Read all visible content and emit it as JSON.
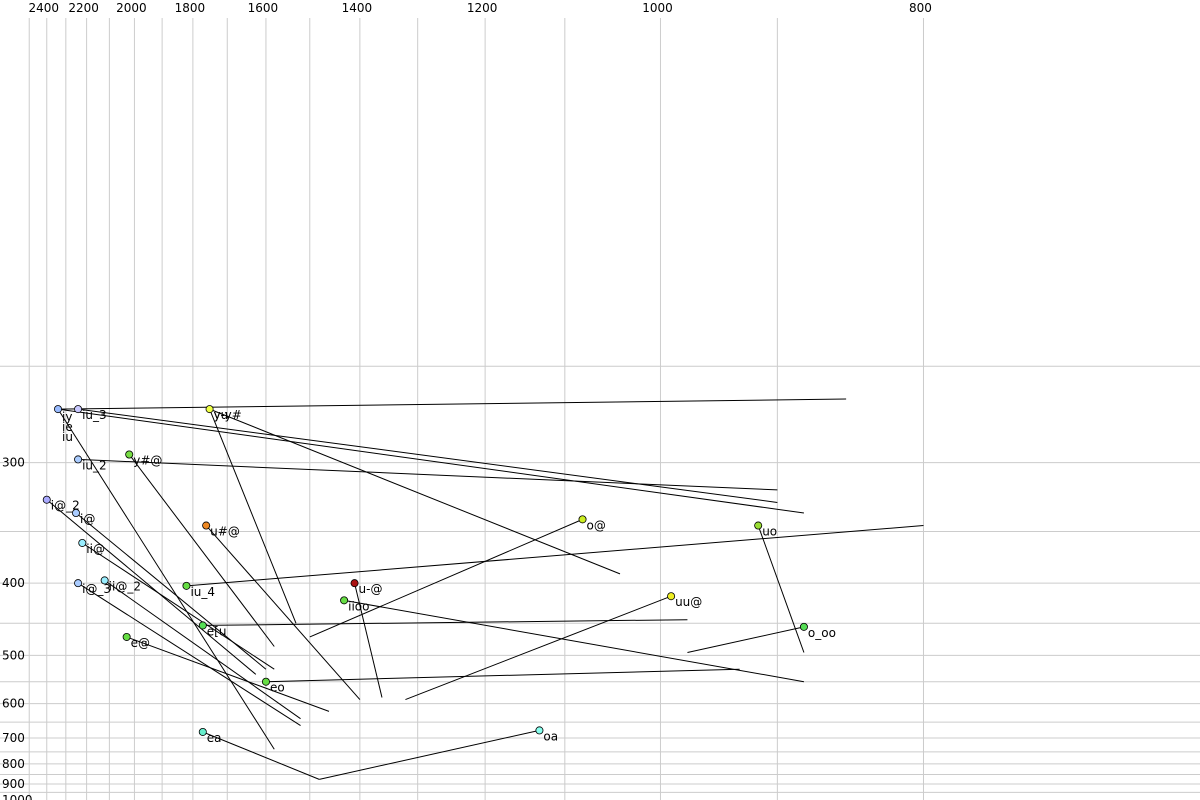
{
  "chart_data": {
    "type": "scatter",
    "title": "",
    "xlabel": "",
    "ylabel": "",
    "x_axis": {
      "reversed": true,
      "scale": "reciprocal",
      "range": [
        2500,
        760
      ],
      "ticks": [
        2400,
        2200,
        2000,
        1800,
        1600,
        1400,
        1200,
        1000,
        800
      ],
      "position": "top"
    },
    "y_axis": {
      "reversed": true,
      "scale": "reciprocal",
      "range": [
        200,
        1000
      ],
      "ticks": [
        300,
        400,
        500,
        600,
        700,
        800,
        900,
        1000
      ],
      "position": "left"
    },
    "grid": true,
    "points": [
      {
        "label": "iy",
        "x": 2340,
        "y": 270,
        "end_x": 850,
        "end_y": 265,
        "color": "#99bbff"
      },
      {
        "label": "ie",
        "x": 2340,
        "y": 270,
        "end_x": 1580,
        "end_y": 740,
        "color": "#99bbff"
      },
      {
        "label": "iu",
        "x": 2340,
        "y": 270,
        "end_x": 880,
        "end_y": 335,
        "color": "#99bbff"
      },
      {
        "label": "iu_3",
        "x": 2240,
        "y": 270,
        "end_x": 900,
        "end_y": 327,
        "color": "#c8c8ff"
      },
      {
        "label": "iu_2",
        "x": 2240,
        "y": 298,
        "end_x": 900,
        "end_y": 318,
        "color": "#aaccff"
      },
      {
        "label": "i@_2",
        "x": 2400,
        "y": 325,
        "end_x": 1625,
        "end_y": 535,
        "color": "#aaaaff"
      },
      {
        "label": "i@",
        "x": 2250,
        "y": 335,
        "end_x": 1600,
        "end_y": 525,
        "color": "#aaccff"
      },
      {
        "label": "ii@",
        "x": 2220,
        "y": 360,
        "end_x": 1580,
        "end_y": 525,
        "color": "#99eeff"
      },
      {
        "label": "ii@_2",
        "x": 2120,
        "y": 397,
        "end_x": 1520,
        "end_y": 640,
        "color": "#99eeff"
      },
      {
        "label": "i@_3",
        "x": 2240,
        "y": 400,
        "end_x": 1520,
        "end_y": 660,
        "color": "#aaccff"
      },
      {
        "label": "y-y#",
        "x": 1750,
        "y": 270,
        "end_x": 1040,
        "end_y": 390,
        "color": "#eeff44"
      },
      {
        "label": "yu",
        "x": 1750,
        "y": 270,
        "end_x": 1530,
        "end_y": 450,
        "color": "#eeff44"
      },
      {
        "label": "y#@",
        "x": 2020,
        "y": 295,
        "end_x": 1580,
        "end_y": 485,
        "color": "#77dd44"
      },
      {
        "label": "u#@",
        "x": 1760,
        "y": 345,
        "end_x": 1400,
        "end_y": 590,
        "color": "#ee8822"
      },
      {
        "label": "iu_4",
        "x": 1820,
        "y": 403,
        "end_x": 800,
        "end_y": 345,
        "color": "#66dd44"
      },
      {
        "label": "u-@",
        "x": 1410,
        "y": 400,
        "end_x": 1360,
        "end_y": 585,
        "color": "#aa1111"
      },
      {
        "label": "iioo",
        "x": 1430,
        "y": 420,
        "end_x": 880,
        "end_y": 550,
        "color": "#66dd44"
      },
      {
        "label": "e[u",
        "x": 1770,
        "y": 453,
        "end_x": 975,
        "end_y": 445,
        "color": "#55dd55"
      },
      {
        "label": "e@",
        "x": 2030,
        "y": 470,
        "end_x": 1460,
        "end_y": 620,
        "color": "#66dd44"
      },
      {
        "label": "eo",
        "x": 1600,
        "y": 550,
        "end_x": 930,
        "end_y": 525,
        "color": "#66dd44"
      },
      {
        "label": "o@",
        "x": 1080,
        "y": 340,
        "end_x": 1500,
        "end_y": 470,
        "color": "#ccee22"
      },
      {
        "label": "uo",
        "x": 915,
        "y": 345,
        "end_x": 880,
        "end_y": 495,
        "color": "#99dd33"
      },
      {
        "label": "uu@",
        "x": 990,
        "y": 415,
        "end_x": 1320,
        "end_y": 590,
        "color": "#eeee22"
      },
      {
        "label": "o_oo",
        "x": 880,
        "y": 455,
        "end_x": 975,
        "end_y": 495,
        "color": "#55dd55"
      },
      {
        "label": "ea",
        "x": 1770,
        "y": 680,
        "end_x": 1480,
        "end_y": 875,
        "color": "#66eecc"
      },
      {
        "label": "oa",
        "x": 1130,
        "y": 675,
        "end_x": 1480,
        "end_y": 875,
        "color": "#88ffee"
      }
    ]
  }
}
